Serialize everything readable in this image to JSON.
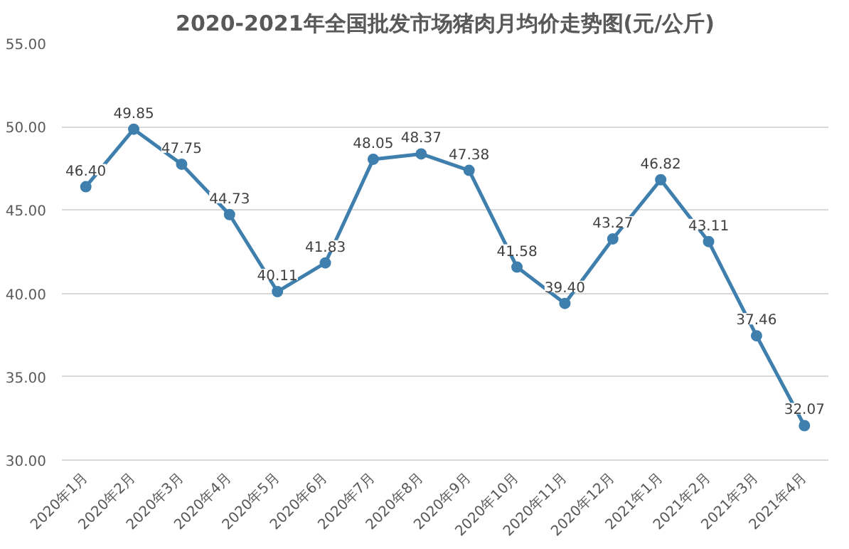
{
  "chart_data": {
    "type": "line",
    "title": "2020-2021年全国批发市场猪肉月均价走势图(元/公斤)",
    "categories": [
      "2020年1月",
      "2020年2月",
      "2020年3月",
      "2020年4月",
      "2020年5月",
      "2020年6月",
      "2020年7月",
      "2020年8月",
      "2020年9月",
      "2020年10月",
      "2020年11月",
      "2020年12月",
      "2021年1月",
      "2021年2月",
      "2021年3月",
      "2021年4月"
    ],
    "series": [
      {
        "color": "#3f7fae",
        "values": [
          46.4,
          49.85,
          47.75,
          44.73,
          40.11,
          41.83,
          48.05,
          48.37,
          47.38,
          41.58,
          39.4,
          43.27,
          46.82,
          43.11,
          37.46,
          32.07
        ],
        "value_labels": [
          "46.40",
          "49.85",
          "47.75",
          "44.73",
          "40.11",
          "41.83",
          "48.05",
          "48.37",
          "47.38",
          "41.58",
          "39.40",
          "43.27",
          "46.82",
          "43.11",
          "37.46",
          "32.07"
        ]
      }
    ],
    "ylim": [
      30,
      55
    ],
    "yticks": [
      {
        "value": 30,
        "label": "30.00"
      },
      {
        "value": 35,
        "label": "35.00"
      },
      {
        "value": 40,
        "label": "40.00"
      },
      {
        "value": 45,
        "label": "45.00"
      },
      {
        "value": 50,
        "label": "50.00"
      },
      {
        "value": 55,
        "label": "55.00"
      }
    ],
    "grid": "y",
    "marker": "circle",
    "line_style": "solid"
  }
}
